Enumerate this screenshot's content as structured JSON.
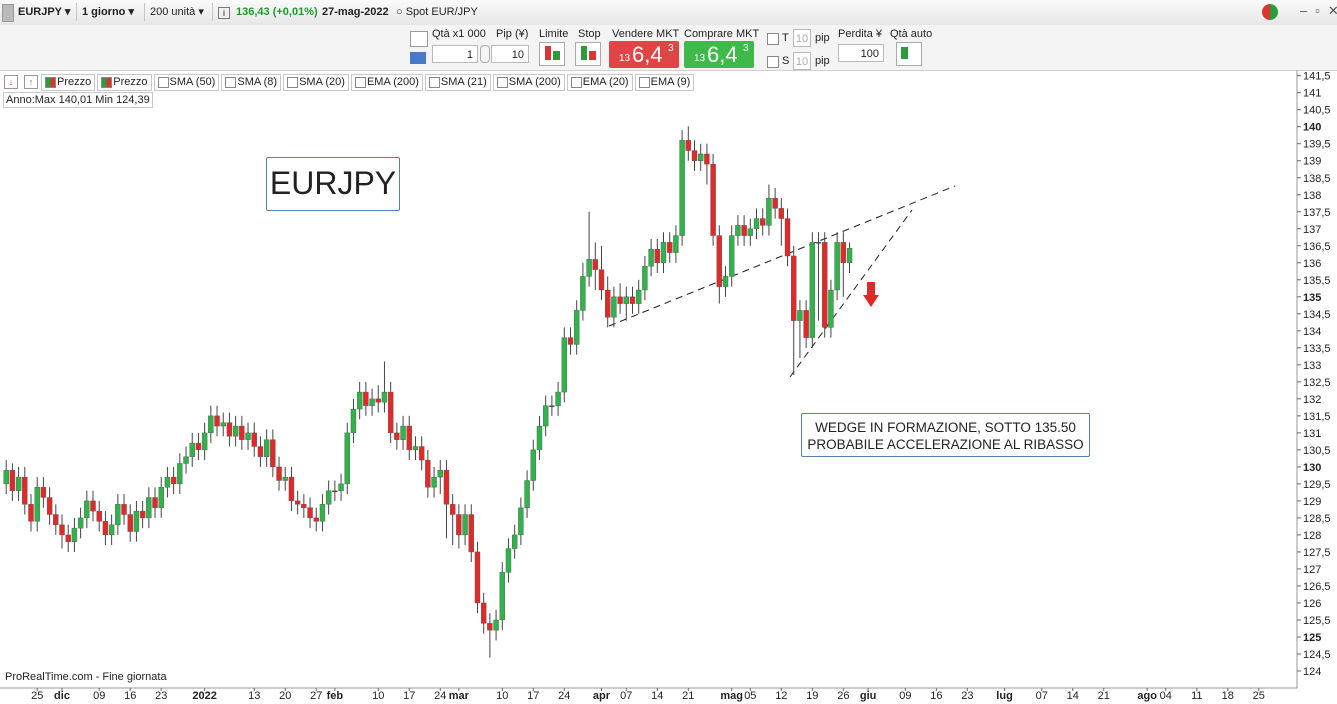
{
  "toolbar": {
    "symbol": "EURJPY",
    "period": "1 giorno",
    "units": "200 unità",
    "quote": "136,43 (+0,01%)",
    "date": "27-mag-2022",
    "instrument": "Spot EUR/JPY"
  },
  "order_bar": {
    "qty_label": "Qtà x1 000",
    "qty": "1",
    "pip_label": "Pip (¥)",
    "pip": "10",
    "limit": "Limite",
    "stop": "Stop",
    "sell_label": "Vendere MKT",
    "sell": {
      "head": "13",
      "main": "6,4",
      "tail": "3"
    },
    "buy_label": "Comprare MKT",
    "buy": {
      "head": "13",
      "main": "6,4",
      "tail": "3"
    },
    "t": "T",
    "t_pip": "10",
    "t_unit": "pip",
    "s": "S",
    "s_pip": "10",
    "s_unit": "pip",
    "loss_label": "Perdita ¥",
    "loss": "100",
    "auto_qty": "Qtà auto"
  },
  "indicators": [
    "Prezzo",
    "Prezzo",
    "SMA (50)",
    "SMA (8)",
    "SMA (20)",
    "EMA (200)",
    "SMA (21)",
    "SMA (200)",
    "EMA (20)",
    "EMA (9)"
  ],
  "year_range": "Anno:Max 140,01 Min 124,39",
  "footer": "ProRealTime.com - Fine giornata",
  "chart_data": {
    "type": "candlestick",
    "title": "EURJPY",
    "annotation": [
      "WEDGE IN FORMAZIONE, SOTTO 135.50",
      "PROBABILE ACCELERAZIONE AL RIBASSO"
    ],
    "up_color": "#2fb34a",
    "down_color": "#e02a2a",
    "x": [
      0,
      1,
      2,
      3,
      4,
      5,
      6,
      7,
      8,
      9,
      10,
      11,
      12,
      13,
      14,
      15,
      16,
      17,
      18,
      19,
      20,
      21,
      22,
      23,
      24,
      25,
      26,
      27,
      28,
      29,
      30,
      31,
      32,
      33,
      34,
      35,
      36,
      37,
      38,
      39,
      40,
      41,
      42,
      43,
      44,
      45,
      46,
      47,
      48,
      49,
      50,
      51,
      52,
      53,
      54,
      55,
      56,
      57,
      58,
      59,
      60,
      61,
      62,
      63,
      64,
      65,
      66,
      67,
      68,
      69,
      70,
      71,
      72,
      73,
      74,
      75,
      76,
      77,
      78,
      79,
      80,
      81,
      82,
      83,
      84,
      85,
      86,
      87,
      88,
      89,
      90,
      91,
      92,
      93,
      94,
      95,
      96,
      97,
      98,
      99,
      100,
      101,
      102,
      103,
      104,
      105,
      106,
      107,
      108,
      109,
      110,
      111,
      112,
      113,
      114,
      115,
      116,
      117,
      118,
      119,
      120,
      121,
      122,
      123,
      124,
      125,
      126,
      127,
      128,
      129,
      130,
      131,
      132,
      133,
      134,
      135,
      136
    ],
    "open": [
      129.5,
      129.9,
      129.3,
      129.7,
      128.9,
      128.4,
      129.4,
      129.1,
      128.6,
      128.3,
      128.0,
      127.8,
      128.2,
      128.5,
      129.0,
      128.7,
      128.4,
      128.0,
      128.3,
      128.9,
      128.6,
      128.1,
      128.7,
      128.5,
      129.1,
      128.8,
      129.4,
      129.7,
      129.5,
      130.1,
      130.3,
      130.7,
      130.5,
      131.0,
      131.5,
      131.2,
      131.3,
      130.9,
      131.2,
      130.8,
      131.0,
      130.6,
      130.3,
      130.8,
      130.0,
      129.6,
      129.7,
      129.0,
      128.9,
      128.8,
      128.5,
      128.4,
      128.9,
      129.3,
      129.3,
      129.5,
      131.0,
      131.7,
      132.2,
      131.8,
      132.0,
      131.9,
      132.2,
      131.0,
      130.8,
      131.2,
      130.5,
      130.6,
      130.2,
      129.4,
      129.7,
      129.9,
      128.9,
      128.6,
      128.0,
      128.6,
      127.5,
      126.0,
      125.4,
      125.2,
      125.5,
      126.9,
      127.6,
      128.0,
      128.8,
      129.6,
      130.5,
      131.2,
      131.8,
      131.8,
      132.2,
      133.8,
      133.6,
      134.6,
      135.6,
      136.1,
      135.8,
      135.2,
      134.4,
      135.0,
      134.8,
      135.0,
      134.8,
      135.2,
      135.9,
      136.4,
      136.0,
      136.6,
      136.3,
      136.8,
      139.6,
      139.3,
      139.0,
      139.2,
      138.9,
      136.8,
      135.3,
      135.6,
      136.8,
      137.1,
      136.8,
      137.0,
      137.3,
      137.1,
      137.9,
      137.6,
      137.3,
      136.2,
      134.3,
      134.6,
      133.8,
      136.6,
      136.6,
      134.1,
      135.2,
      136.6,
      136.0
    ],
    "high": [
      130.2,
      130.1,
      130.0,
      130.0,
      129.2,
      129.7,
      129.7,
      129.4,
      128.9,
      128.6,
      128.3,
      128.5,
      128.8,
      129.3,
      129.3,
      129.0,
      128.7,
      128.6,
      129.2,
      129.2,
      128.9,
      129.0,
      129.0,
      129.4,
      129.4,
      129.7,
      130.0,
      130.0,
      130.4,
      130.6,
      131.0,
      131.0,
      131.3,
      131.8,
      131.8,
      131.6,
      131.6,
      131.5,
      131.5,
      131.3,
      131.3,
      130.9,
      131.1,
      131.1,
      130.3,
      130.0,
      130.0,
      129.3,
      129.2,
      129.1,
      128.8,
      129.2,
      129.6,
      129.6,
      129.8,
      131.3,
      132.0,
      132.5,
      132.5,
      132.3,
      132.4,
      133.1,
      132.5,
      131.3,
      131.5,
      131.5,
      130.9,
      130.9,
      130.5,
      130.0,
      130.2,
      130.2,
      129.2,
      128.9,
      128.9,
      128.9,
      127.8,
      126.3,
      125.7,
      125.8,
      127.2,
      127.9,
      128.3,
      129.1,
      129.9,
      130.8,
      131.5,
      132.1,
      132.1,
      132.5,
      134.1,
      134.1,
      134.9,
      136.0,
      137.5,
      136.6,
      136.5,
      135.6,
      135.3,
      135.4,
      135.3,
      135.3,
      135.5,
      136.2,
      136.7,
      136.7,
      136.9,
      136.9,
      137.1,
      139.9,
      140.01,
      139.6,
      139.5,
      139.5,
      139.2,
      137.1,
      135.9,
      137.1,
      137.4,
      137.4,
      137.3,
      137.6,
      137.6,
      138.3,
      138.2,
      137.9,
      137.6,
      136.5,
      134.9,
      134.9,
      136.9,
      136.9,
      136.9,
      135.5,
      136.9,
      136.9,
      136.6
    ],
    "low": [
      129.2,
      129.0,
      129.0,
      128.6,
      128.1,
      128.1,
      128.8,
      128.3,
      128.0,
      127.6,
      127.5,
      127.5,
      127.9,
      128.2,
      128.4,
      128.1,
      127.7,
      127.7,
      128.0,
      128.3,
      127.8,
      127.8,
      128.2,
      128.2,
      128.5,
      128.5,
      129.1,
      129.2,
      129.2,
      129.8,
      130.0,
      130.2,
      130.2,
      130.7,
      130.9,
      130.9,
      130.6,
      130.6,
      130.5,
      130.5,
      130.3,
      130.0,
      130.0,
      129.7,
      129.3,
      129.3,
      128.7,
      128.6,
      128.5,
      128.2,
      128.1,
      128.1,
      128.6,
      129.0,
      129.0,
      129.2,
      130.7,
      131.4,
      131.5,
      131.5,
      131.6,
      131.6,
      130.7,
      130.5,
      130.5,
      130.2,
      130.2,
      129.9,
      129.1,
      129.1,
      129.2,
      127.9,
      127.7,
      127.6,
      127.7,
      127.2,
      125.7,
      125.1,
      124.39,
      124.9,
      125.2,
      126.6,
      127.3,
      127.7,
      128.5,
      129.3,
      130.2,
      130.9,
      131.5,
      131.5,
      131.9,
      133.3,
      133.3,
      134.3,
      135.3,
      135.2,
      134.9,
      134.1,
      134.1,
      134.5,
      134.3,
      134.5,
      134.5,
      134.9,
      135.6,
      135.7,
      135.7,
      136.0,
      136.0,
      136.5,
      139.0,
      138.7,
      138.7,
      138.3,
      136.5,
      134.8,
      135.0,
      135.3,
      136.5,
      136.5,
      136.5,
      136.7,
      136.8,
      136.8,
      137.3,
      136.5,
      135.9,
      132.7,
      133.2,
      133.5,
      133.5,
      134.3,
      133.8,
      133.8,
      134.9,
      135.0,
      135.7
    ],
    "close": [
      129.9,
      129.3,
      129.7,
      128.9,
      128.4,
      129.4,
      129.1,
      128.6,
      128.3,
      128.0,
      127.8,
      128.2,
      128.5,
      129.0,
      128.7,
      128.4,
      128.0,
      128.3,
      128.9,
      128.6,
      128.1,
      128.7,
      128.5,
      129.1,
      128.8,
      129.4,
      129.7,
      129.5,
      130.1,
      130.3,
      130.7,
      130.5,
      131.0,
      131.5,
      131.2,
      131.3,
      130.9,
      131.2,
      130.8,
      131.0,
      130.6,
      130.3,
      130.8,
      130.0,
      129.6,
      129.7,
      129.0,
      128.9,
      128.8,
      128.5,
      128.4,
      128.9,
      129.3,
      129.3,
      129.5,
      131.0,
      131.7,
      132.2,
      131.8,
      132.0,
      131.9,
      132.2,
      131.0,
      130.8,
      131.2,
      130.5,
      130.6,
      130.2,
      129.4,
      129.7,
      129.9,
      128.9,
      128.6,
      128.0,
      128.6,
      127.5,
      126.0,
      125.4,
      125.2,
      125.5,
      126.9,
      127.6,
      128.0,
      128.8,
      129.6,
      130.5,
      131.2,
      131.8,
      131.8,
      132.2,
      133.8,
      133.6,
      134.6,
      135.6,
      136.1,
      135.8,
      135.2,
      134.4,
      135.0,
      134.8,
      135.0,
      134.8,
      135.2,
      135.9,
      136.4,
      136.0,
      136.6,
      136.3,
      136.8,
      139.6,
      139.3,
      139.0,
      139.2,
      138.9,
      136.8,
      135.3,
      135.6,
      136.8,
      137.1,
      136.8,
      137.0,
      137.3,
      137.1,
      137.9,
      137.6,
      137.3,
      136.2,
      134.3,
      134.6,
      133.8,
      136.6,
      136.6,
      134.1,
      135.2,
      136.6,
      136.0,
      136.43
    ],
    "xlim": [
      -1,
      208
    ],
    "xticks": [
      {
        "value": 5,
        "label": "25"
      },
      {
        "value": 9,
        "label": "dic"
      },
      {
        "value": 15,
        "label": "09"
      },
      {
        "value": 20,
        "label": "16"
      },
      {
        "value": 25,
        "label": "23"
      },
      {
        "value": 32,
        "label": "2022"
      },
      {
        "value": 40,
        "label": "13"
      },
      {
        "value": 45,
        "label": "20"
      },
      {
        "value": 50,
        "label": "27"
      },
      {
        "value": 53,
        "label": "feb"
      },
      {
        "value": 60,
        "label": "10"
      },
      {
        "value": 65,
        "label": "17"
      },
      {
        "value": 70,
        "label": "24"
      },
      {
        "value": 73,
        "label": "mar"
      },
      {
        "value": 80,
        "label": "10"
      },
      {
        "value": 85,
        "label": "17"
      },
      {
        "value": 90,
        "label": "24"
      },
      {
        "value": 96,
        "label": "apr"
      },
      {
        "value": 100,
        "label": "07"
      },
      {
        "value": 105,
        "label": "14"
      },
      {
        "value": 110,
        "label": "21"
      },
      {
        "value": 117,
        "label": "mag"
      },
      {
        "value": 120,
        "label": "05"
      },
      {
        "value": 125,
        "label": "12"
      },
      {
        "value": 130,
        "label": "19"
      },
      {
        "value": 135,
        "label": "26"
      },
      {
        "value": 139,
        "label": "giu"
      },
      {
        "value": 145,
        "label": "09"
      },
      {
        "value": 150,
        "label": "16"
      },
      {
        "value": 155,
        "label": "23"
      },
      {
        "value": 161,
        "label": "lug"
      },
      {
        "value": 167,
        "label": "07"
      },
      {
        "value": 172,
        "label": "14"
      },
      {
        "value": 177,
        "label": "21"
      },
      {
        "value": 184,
        "label": "ago"
      },
      {
        "value": 187,
        "label": "04"
      },
      {
        "value": 192,
        "label": "11"
      },
      {
        "value": 197,
        "label": "18"
      },
      {
        "value": 202,
        "label": "25"
      }
    ],
    "ylim": [
      123.5,
      141.55
    ],
    "yticks": [
      124,
      {
        "value": 124.5,
        "label": "124,5"
      },
      125,
      {
        "value": 125.5,
        "label": "125,5"
      },
      126,
      {
        "value": 126.5,
        "label": "126,5"
      },
      127,
      {
        "value": 127.5,
        "label": "127,5"
      },
      128,
      {
        "value": 128.5,
        "label": "128,5"
      },
      129,
      {
        "value": 129.5,
        "label": "129,5"
      },
      130,
      {
        "value": 130.5,
        "label": "130,5"
      },
      131,
      {
        "value": 131.5,
        "label": "131,5"
      },
      132,
      {
        "value": 132.5,
        "label": "132,5"
      },
      133,
      {
        "value": 133.5,
        "label": "133,5"
      },
      134,
      {
        "value": 134.5,
        "label": "134,5"
      },
      135,
      {
        "value": 135.5,
        "label": "135,5"
      },
      136,
      {
        "value": 136.5,
        "label": "136,5"
      },
      137,
      {
        "value": 137.5,
        "label": "137,5"
      },
      138,
      {
        "value": 138.5,
        "label": "138,5"
      },
      139,
      {
        "value": 139.5,
        "label": "139,5"
      },
      140,
      {
        "value": 140.5,
        "label": "140,5"
      },
      141,
      {
        "value": 141.5,
        "label": "141,5"
      }
    ]
  }
}
